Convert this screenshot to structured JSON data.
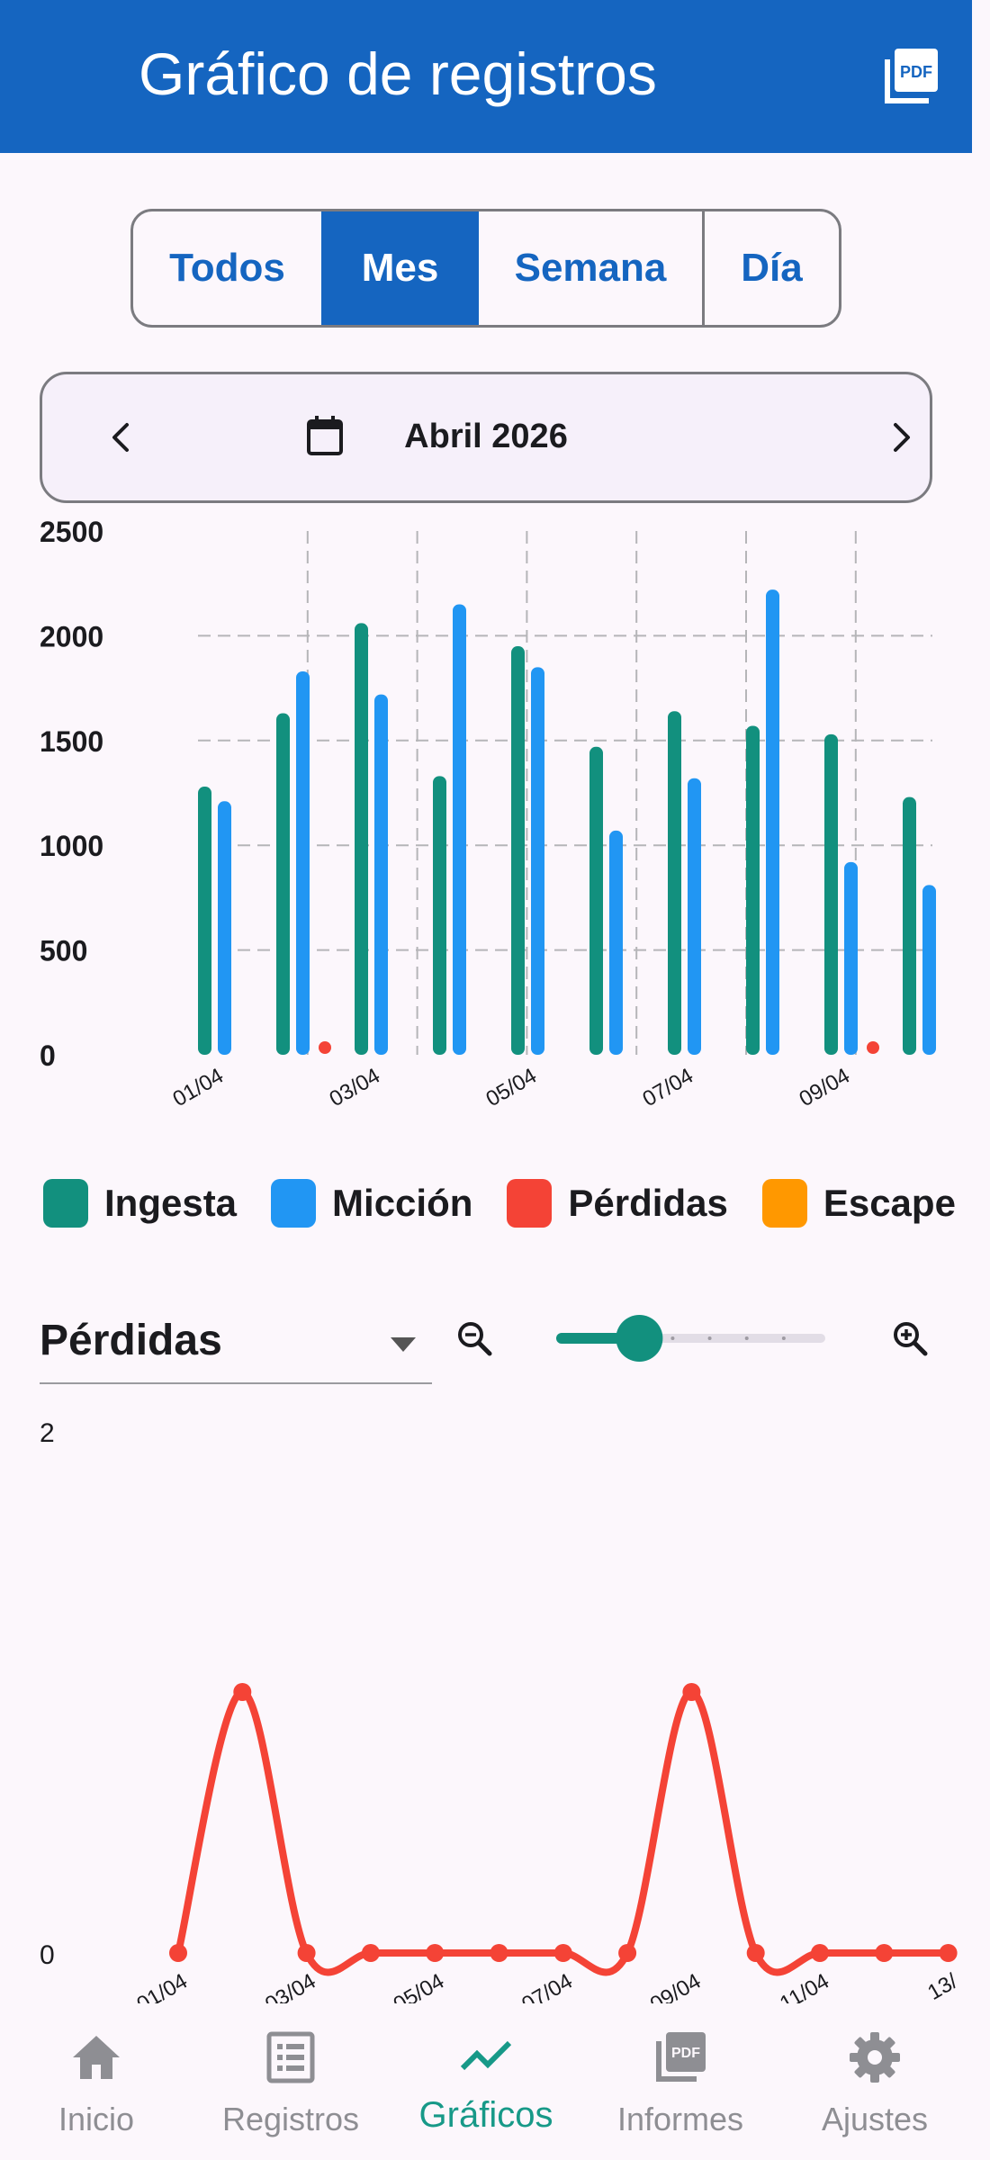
{
  "app": {
    "title": "Gráfico de registros",
    "pdf_icon": "pdf-icon",
    "accent": "#1565C0"
  },
  "range_tabs": [
    {
      "label": "Todos",
      "active": false
    },
    {
      "label": "Mes",
      "active": true
    },
    {
      "label": "Semana",
      "active": false
    },
    {
      "label": "Día",
      "active": false
    }
  ],
  "period": {
    "label": "Abril 2026",
    "prev_icon": "chevron-left-icon",
    "next_icon": "chevron-right-icon",
    "calendar_icon": "calendar-icon"
  },
  "legend": [
    {
      "label": "Ingesta",
      "color": "#12907E"
    },
    {
      "label": "Micción",
      "color": "#2196F3"
    },
    {
      "label": "Pérdidas",
      "color": "#F44336"
    },
    {
      "label": "Escape",
      "color": "#FF9800"
    }
  ],
  "filter": {
    "selected": "Pérdidas",
    "zoom_out_icon": "zoom-out-icon",
    "zoom_in_icon": "zoom-in-icon",
    "zoom_level": 0.3
  },
  "chart_data": [
    {
      "type": "bar",
      "categories": [
        "01/04",
        "02/04",
        "03/04",
        "04/04",
        "05/04",
        "06/04",
        "07/04",
        "08/04",
        "09/04",
        "10/04"
      ],
      "x_tick_labels": [
        "01/04",
        "03/04",
        "05/04",
        "07/04",
        "09/04"
      ],
      "y_tick_labels": [
        "0",
        "500",
        "1000",
        "1500",
        "2000",
        "2500"
      ],
      "ylim": [
        0,
        2500
      ],
      "grid": true,
      "series": [
        {
          "name": "Ingesta",
          "values": [
            1280,
            1630,
            2060,
            1330,
            1950,
            1470,
            1640,
            1570,
            1530,
            1230
          ]
        },
        {
          "name": "Micción",
          "values": [
            1210,
            1830,
            1720,
            2150,
            1850,
            1070,
            1320,
            2220,
            920,
            810
          ]
        },
        {
          "name": "Pérdidas",
          "values": [
            0,
            1,
            0,
            0,
            0,
            0,
            0,
            0,
            1,
            0
          ]
        }
      ]
    },
    {
      "type": "line",
      "x": [
        "01/04",
        "02/04",
        "03/04",
        "04/04",
        "05/04",
        "06/04",
        "07/04",
        "08/04",
        "09/04",
        "10/04",
        "11/04",
        "12/04",
        "13/04"
      ],
      "x_tick_labels": [
        "01/04",
        "03/04",
        "05/04",
        "07/04",
        "09/04",
        "11/04",
        "13/"
      ],
      "y_tick_labels": [
        "0",
        "2"
      ],
      "ylim": [
        0,
        2
      ],
      "series": [
        {
          "name": "Pérdidas",
          "values": [
            0,
            1,
            0,
            0,
            0,
            0,
            0,
            0,
            1,
            0,
            0,
            0,
            0
          ]
        }
      ]
    }
  ],
  "nav": [
    {
      "label": "Inicio",
      "icon": "home-icon",
      "active": false
    },
    {
      "label": "Registros",
      "icon": "list-icon",
      "active": false
    },
    {
      "label": "Gráficos",
      "icon": "trending-icon",
      "active": true
    },
    {
      "label": "Informes",
      "icon": "pdf-icon",
      "active": false
    },
    {
      "label": "Ajustes",
      "icon": "gear-icon",
      "active": false
    }
  ]
}
